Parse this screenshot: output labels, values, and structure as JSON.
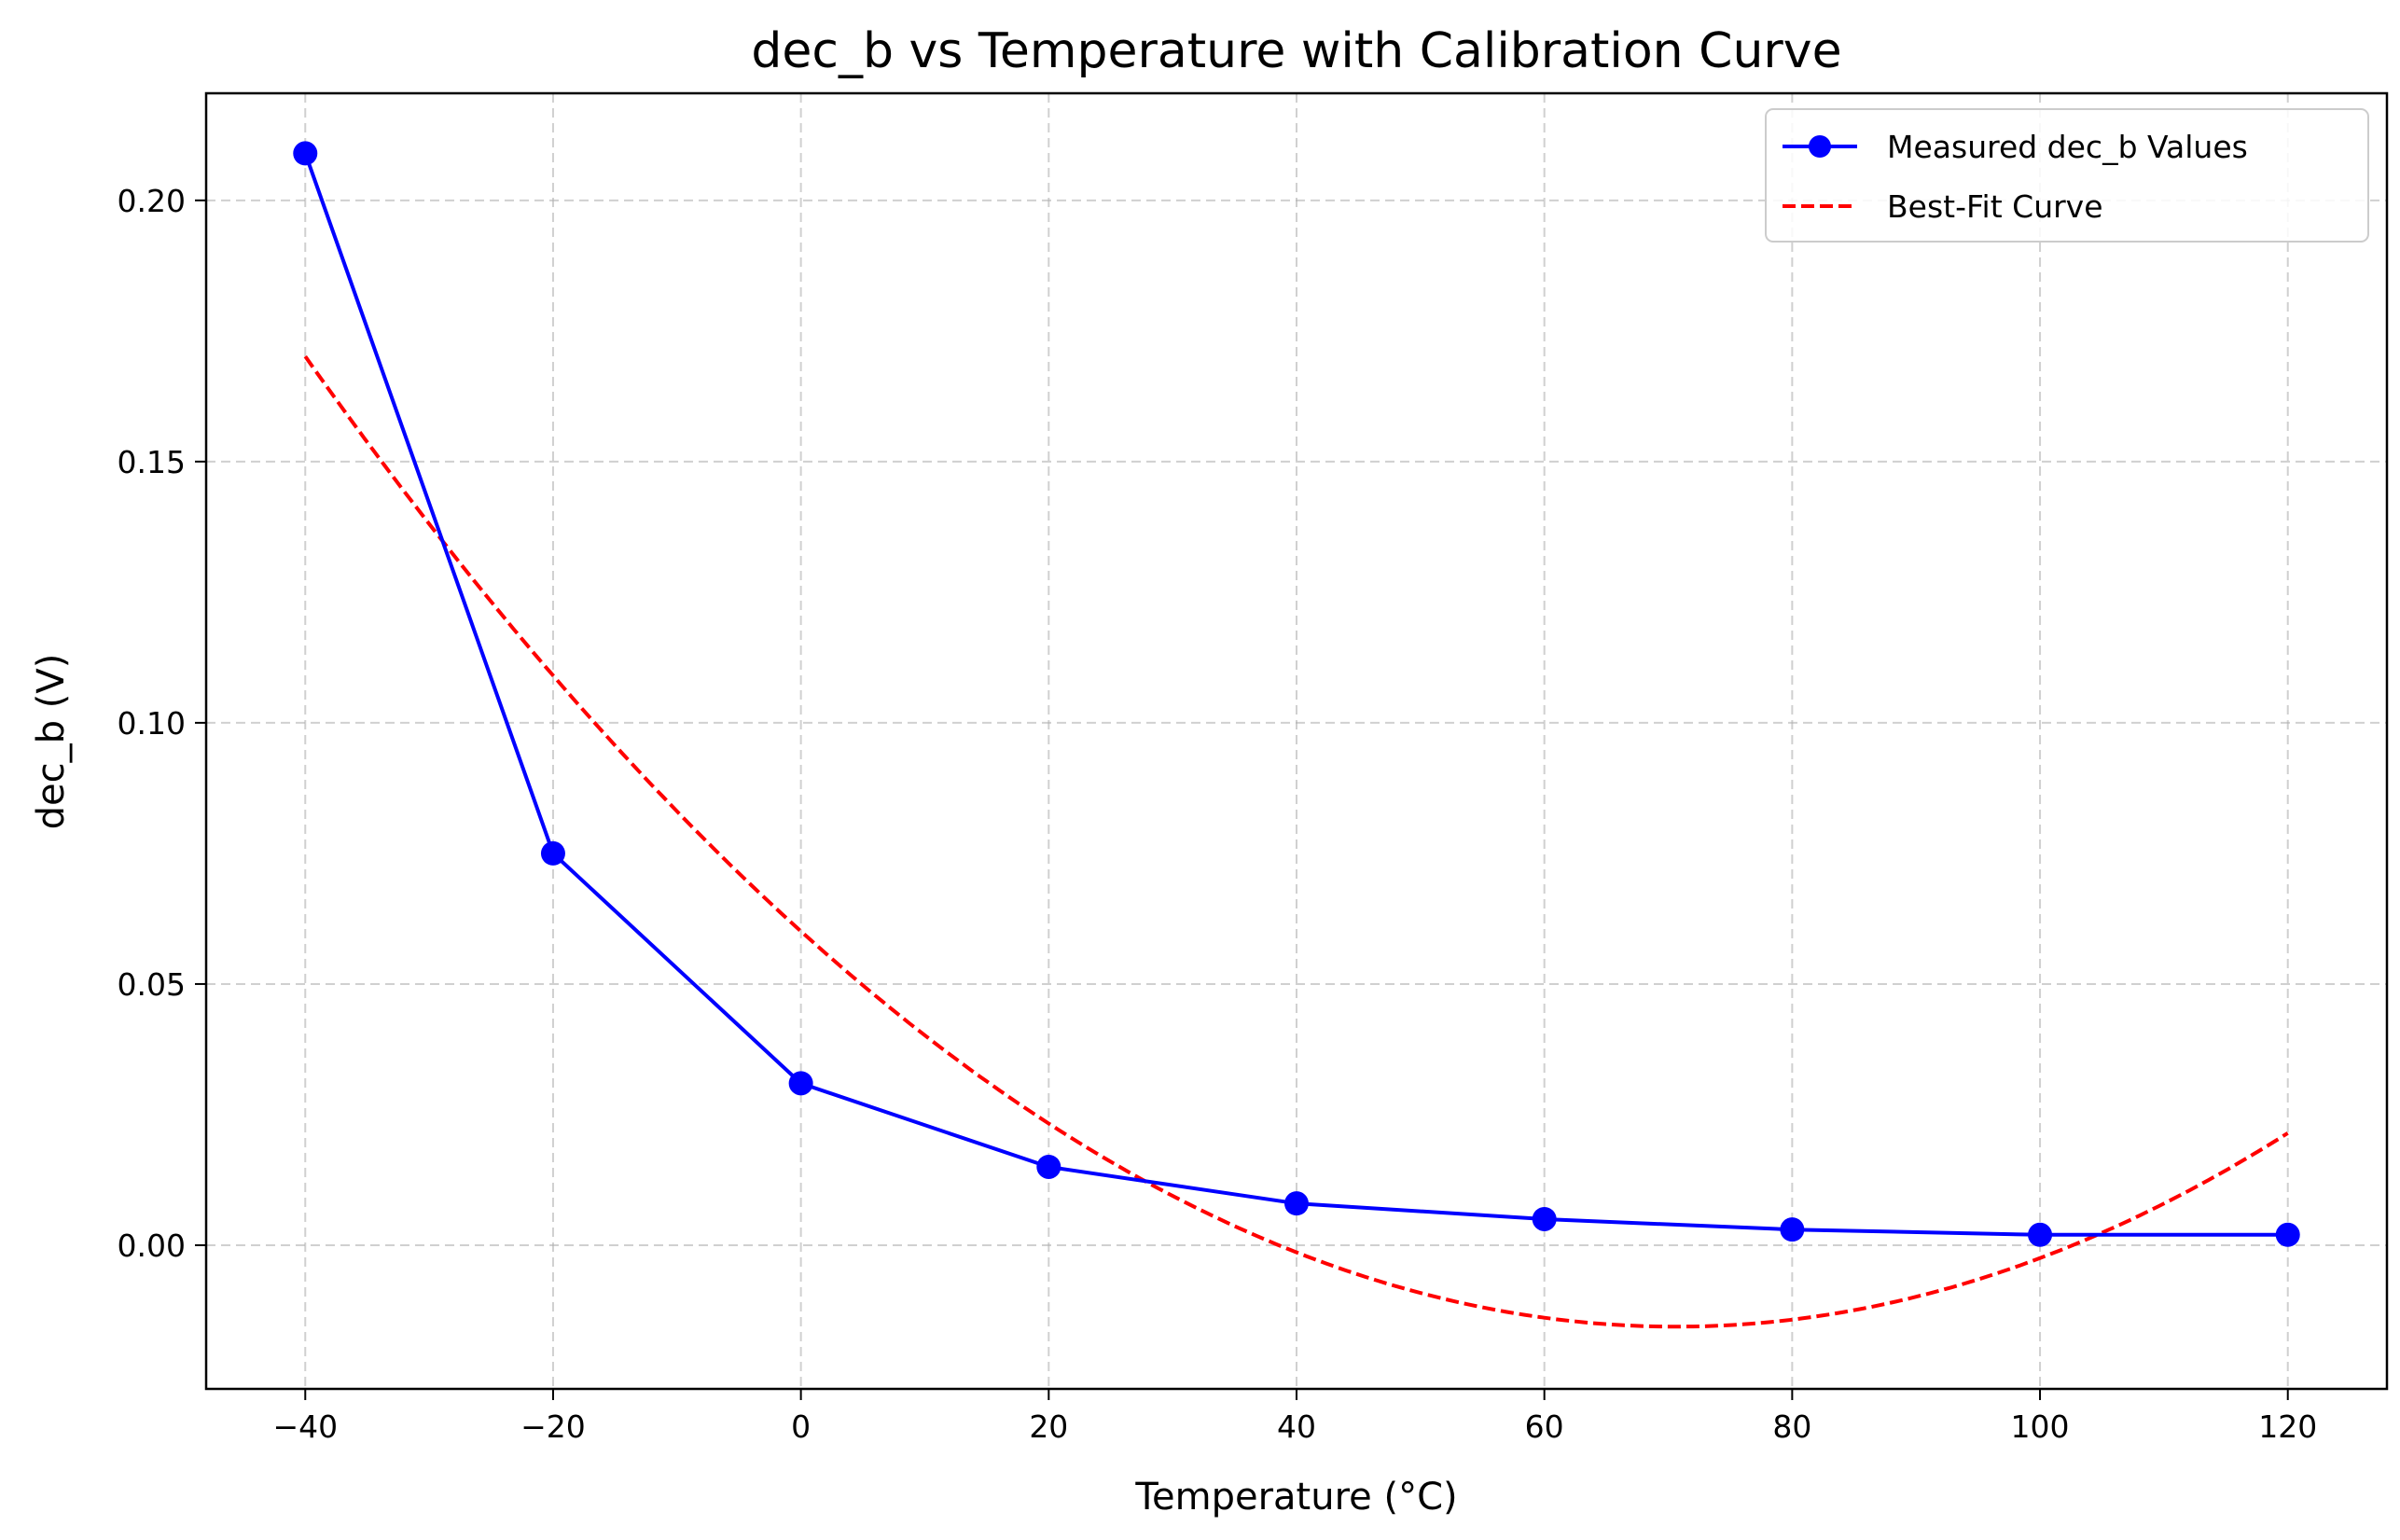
{
  "chart_data": {
    "type": "line",
    "title": "dec_b vs Temperature with Calibration Curve",
    "xlabel": "Temperature (°C)",
    "ylabel": "dec_b (V)",
    "xlim": [
      -48,
      128
    ],
    "ylim": [
      -0.0275,
      0.2205
    ],
    "xticks": [
      -40,
      -20,
      0,
      20,
      40,
      60,
      80,
      100,
      120
    ],
    "xtick_labels": [
      "−40",
      "−20",
      "0",
      "20",
      "40",
      "60",
      "80",
      "100",
      "120"
    ],
    "yticks": [
      0.0,
      0.05,
      0.1,
      0.15,
      0.2
    ],
    "ytick_labels": [
      "0.00",
      "0.05",
      "0.10",
      "0.15",
      "0.20"
    ],
    "grid": true,
    "legend_position": "top-right",
    "series": [
      {
        "name": "Measured dec_b Values",
        "style": "solid-line-with-circle-markers",
        "color": "#0000ff",
        "x": [
          -40,
          -20,
          0,
          20,
          40,
          60,
          80,
          100,
          120
        ],
        "y": [
          0.209,
          0.075,
          0.031,
          0.015,
          0.008,
          0.005,
          0.003,
          0.002,
          0.002
        ]
      },
      {
        "name": "Best-Fit Curve",
        "style": "dashed-line",
        "color": "#ff0000",
        "x": [
          -40,
          -20,
          0,
          20,
          40,
          60,
          70,
          80,
          100,
          120
        ],
        "y": [
          0.1705,
          0.1085,
          0.0595,
          0.0235,
          0.0005,
          -0.0145,
          -0.016,
          -0.0145,
          -0.003,
          0.022
        ]
      }
    ]
  }
}
